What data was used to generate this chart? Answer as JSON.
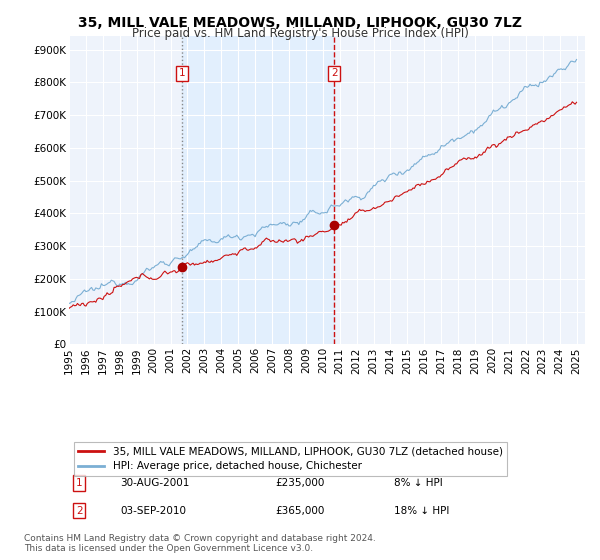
{
  "title": "35, MILL VALE MEADOWS, MILLAND, LIPHOOK, GU30 7LZ",
  "subtitle": "Price paid vs. HM Land Registry's House Price Index (HPI)",
  "yticks": [
    0,
    100000,
    200000,
    300000,
    400000,
    500000,
    600000,
    700000,
    800000,
    900000
  ],
  "ytick_labels": [
    "£0",
    "£100K",
    "£200K",
    "£300K",
    "£400K",
    "£500K",
    "£600K",
    "£700K",
    "£800K",
    "£900K"
  ],
  "ylim": [
    0,
    940000
  ],
  "xlim_start": 1995.0,
  "xlim_end": 2025.5,
  "hpi_color": "#7bafd4",
  "price_color": "#cc1111",
  "marker_color": "#aa0000",
  "vline1_color": "#888888",
  "vline1_style": "dotted",
  "vline2_color": "#cc1111",
  "vline2_style": "dashed",
  "shade_color": "#ddeeff",
  "legend_label_price": "35, MILL VALE MEADOWS, MILLAND, LIPHOOK, GU30 7LZ (detached house)",
  "legend_label_hpi": "HPI: Average price, detached house, Chichester",
  "sale1_date": "30-AUG-2001",
  "sale1_price": "£235,000",
  "sale1_pct": "8% ↓ HPI",
  "sale1_year": 2001.67,
  "sale1_value": 235000,
  "sale2_date": "03-SEP-2010",
  "sale2_price": "£365,000",
  "sale2_pct": "18% ↓ HPI",
  "sale2_year": 2010.67,
  "sale2_value": 365000,
  "footnote": "Contains HM Land Registry data © Crown copyright and database right 2024.\nThis data is licensed under the Open Government Licence v3.0.",
  "background_color": "#ffffff",
  "plot_background": "#eef3fb",
  "grid_color": "#ffffff",
  "title_fontsize": 10,
  "subtitle_fontsize": 8.5,
  "tick_fontsize": 7.5,
  "legend_fontsize": 7.5,
  "footnote_fontsize": 6.5,
  "label_box_color": "#cc1111"
}
